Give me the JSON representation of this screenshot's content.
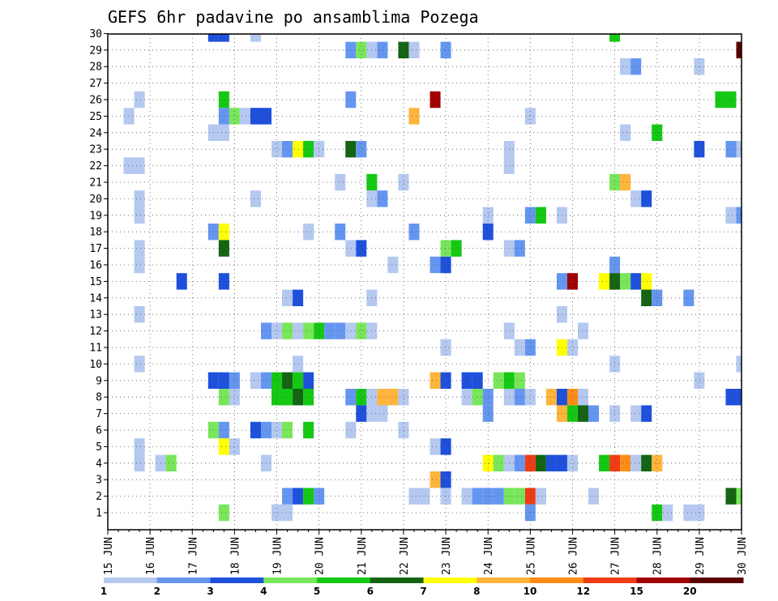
{
  "chart_data": {
    "type": "heatmap",
    "title": "GEFS 6hr padavine po ansamblima Pozega",
    "x_ticks": [
      "15 JUN",
      "16 JUN",
      "17 JUN",
      "18 JUN",
      "19 JUN",
      "20 JUN",
      "21 JUN",
      "22 JUN",
      "23 JUN",
      "24 JUN",
      "25 JUN",
      "26 JUN",
      "27 JUN",
      "28 JUN",
      "29 JUN",
      "30 JUN"
    ],
    "y_ticks": [
      "1",
      "2",
      "3",
      "4",
      "5",
      "6",
      "7",
      "8",
      "9",
      "10",
      "11",
      "12",
      "13",
      "14",
      "15",
      "16",
      "17",
      "18",
      "19",
      "20",
      "21",
      "22",
      "23",
      "24",
      "25",
      "26",
      "27",
      "28",
      "29",
      "30"
    ],
    "xlim_days": [
      15,
      30
    ],
    "ylim_members": [
      1,
      30
    ],
    "time_step_hours": 6,
    "grid": true,
    "legend_position": "bottom",
    "legend": {
      "labels": [
        "1",
        "2",
        "3",
        "4",
        "5",
        "6",
        "7",
        "8",
        "10",
        "12",
        "15",
        "20"
      ],
      "colors": [
        "#b4c8f0",
        "#6496f0",
        "#1e50dc",
        "#78e65a",
        "#14c814",
        "#146414",
        "#ffff00",
        "#ffb43c",
        "#ff8c14",
        "#f03c14",
        "#a00000",
        "#5a0000"
      ]
    },
    "cells": [
      [
        30,
        17.5,
        2
      ],
      [
        30,
        17.75,
        2
      ],
      [
        30,
        18.5,
        0
      ],
      [
        30,
        27.0,
        4
      ],
      [
        29,
        20.75,
        1
      ],
      [
        29,
        21.0,
        3
      ],
      [
        29,
        21.25,
        0
      ],
      [
        29,
        21.5,
        1
      ],
      [
        29,
        22.0,
        5
      ],
      [
        29,
        22.25,
        0
      ],
      [
        29,
        23.0,
        1
      ],
      [
        29,
        30.0,
        11
      ],
      [
        28,
        27.25,
        0
      ],
      [
        28,
        27.5,
        1
      ],
      [
        28,
        29.0,
        0
      ],
      [
        26,
        15.75,
        0
      ],
      [
        26,
        17.75,
        4
      ],
      [
        26,
        20.75,
        1
      ],
      [
        26,
        22.75,
        10
      ],
      [
        26,
        29.5,
        4
      ],
      [
        26,
        29.75,
        4
      ],
      [
        25,
        15.5,
        0
      ],
      [
        25,
        17.75,
        1
      ],
      [
        25,
        18.0,
        3
      ],
      [
        25,
        18.25,
        0
      ],
      [
        25,
        18.5,
        2
      ],
      [
        25,
        18.75,
        2
      ],
      [
        25,
        22.25,
        7
      ],
      [
        25,
        25.0,
        0
      ],
      [
        24,
        17.5,
        0
      ],
      [
        24,
        17.75,
        0
      ],
      [
        24,
        27.25,
        0
      ],
      [
        24,
        28.0,
        4
      ],
      [
        23,
        19.0,
        0
      ],
      [
        23,
        19.25,
        1
      ],
      [
        23,
        19.5,
        6
      ],
      [
        23,
        19.75,
        4
      ],
      [
        23,
        20.0,
        0
      ],
      [
        23,
        20.75,
        5
      ],
      [
        23,
        21.0,
        1
      ],
      [
        23,
        24.5,
        0
      ],
      [
        23,
        29.0,
        2
      ],
      [
        23,
        29.75,
        1
      ],
      [
        23,
        30.0,
        0
      ],
      [
        22,
        15.5,
        0
      ],
      [
        22,
        15.75,
        0
      ],
      [
        22,
        24.5,
        0
      ],
      [
        21,
        20.5,
        0
      ],
      [
        21,
        21.25,
        4
      ],
      [
        21,
        22.0,
        0
      ],
      [
        21,
        27.0,
        3
      ],
      [
        21,
        27.25,
        7
      ],
      [
        20,
        15.75,
        0
      ],
      [
        20,
        18.5,
        0
      ],
      [
        20,
        21.25,
        0
      ],
      [
        20,
        21.5,
        1
      ],
      [
        20,
        27.5,
        0
      ],
      [
        20,
        27.75,
        2
      ],
      [
        19,
        15.75,
        0
      ],
      [
        19,
        24.0,
        0
      ],
      [
        19,
        25.0,
        1
      ],
      [
        19,
        25.25,
        4
      ],
      [
        19,
        25.75,
        0
      ],
      [
        19,
        29.75,
        0
      ],
      [
        19,
        30.0,
        1
      ],
      [
        18,
        17.5,
        1
      ],
      [
        18,
        17.75,
        6
      ],
      [
        18,
        19.75,
        0
      ],
      [
        18,
        20.5,
        1
      ],
      [
        18,
        22.25,
        1
      ],
      [
        18,
        24.0,
        2
      ],
      [
        17,
        15.75,
        0
      ],
      [
        17,
        17.75,
        5
      ],
      [
        17,
        20.75,
        0
      ],
      [
        17,
        21.0,
        2
      ],
      [
        17,
        23.0,
        3
      ],
      [
        17,
        23.25,
        4
      ],
      [
        17,
        24.5,
        0
      ],
      [
        17,
        24.75,
        1
      ],
      [
        16,
        15.75,
        0
      ],
      [
        16,
        21.75,
        0
      ],
      [
        16,
        22.75,
        1
      ],
      [
        16,
        23.0,
        2
      ],
      [
        16,
        27.0,
        1
      ],
      [
        15,
        16.75,
        2
      ],
      [
        15,
        17.75,
        2
      ],
      [
        15,
        25.75,
        1
      ],
      [
        15,
        26.0,
        10
      ],
      [
        15,
        26.75,
        6
      ],
      [
        15,
        27.0,
        5
      ],
      [
        15,
        27.25,
        3
      ],
      [
        15,
        27.5,
        2
      ],
      [
        15,
        27.75,
        6
      ],
      [
        14,
        19.25,
        0
      ],
      [
        14,
        19.5,
        2
      ],
      [
        14,
        21.25,
        0
      ],
      [
        14,
        27.75,
        5
      ],
      [
        14,
        28.0,
        1
      ],
      [
        14,
        28.75,
        1
      ],
      [
        13,
        15.75,
        0
      ],
      [
        13,
        25.75,
        0
      ],
      [
        12,
        18.75,
        1
      ],
      [
        12,
        19.0,
        0
      ],
      [
        12,
        19.25,
        3
      ],
      [
        12,
        19.5,
        0
      ],
      [
        12,
        19.75,
        3
      ],
      [
        12,
        20.0,
        4
      ],
      [
        12,
        20.25,
        1
      ],
      [
        12,
        20.5,
        1
      ],
      [
        12,
        20.75,
        0
      ],
      [
        12,
        21.0,
        3
      ],
      [
        12,
        21.25,
        0
      ],
      [
        12,
        26.25,
        0
      ],
      [
        12,
        24.5,
        0
      ],
      [
        11,
        23.0,
        0
      ],
      [
        11,
        24.75,
        0
      ],
      [
        11,
        25.0,
        1
      ],
      [
        11,
        25.75,
        6
      ],
      [
        11,
        26.0,
        0
      ],
      [
        10,
        15.75,
        0
      ],
      [
        10,
        19.5,
        0
      ],
      [
        10,
        27.0,
        0
      ],
      [
        10,
        30.0,
        0
      ],
      [
        9,
        17.5,
        2
      ],
      [
        9,
        17.75,
        2
      ],
      [
        9,
        18.0,
        1
      ],
      [
        9,
        18.5,
        0
      ],
      [
        9,
        18.75,
        1
      ],
      [
        9,
        19.0,
        4
      ],
      [
        9,
        19.25,
        5
      ],
      [
        9,
        19.5,
        4
      ],
      [
        9,
        19.75,
        2
      ],
      [
        9,
        22.75,
        7
      ],
      [
        9,
        23.0,
        2
      ],
      [
        9,
        23.5,
        2
      ],
      [
        9,
        23.75,
        2
      ],
      [
        9,
        24.25,
        3
      ],
      [
        9,
        24.5,
        4
      ],
      [
        9,
        24.75,
        3
      ],
      [
        9,
        29.0,
        0
      ],
      [
        8,
        17.75,
        3
      ],
      [
        8,
        18.0,
        0
      ],
      [
        8,
        19.0,
        4
      ],
      [
        8,
        19.25,
        4
      ],
      [
        8,
        19.5,
        5
      ],
      [
        8,
        19.75,
        4
      ],
      [
        8,
        20.75,
        1
      ],
      [
        8,
        21.0,
        4
      ],
      [
        8,
        21.25,
        0
      ],
      [
        8,
        21.5,
        7
      ],
      [
        8,
        21.75,
        7
      ],
      [
        8,
        22.0,
        0
      ],
      [
        8,
        23.5,
        0
      ],
      [
        8,
        23.75,
        3
      ],
      [
        8,
        24.0,
        1
      ],
      [
        8,
        24.5,
        0
      ],
      [
        8,
        24.75,
        1
      ],
      [
        8,
        25.0,
        0
      ],
      [
        8,
        25.5,
        7
      ],
      [
        8,
        25.75,
        2
      ],
      [
        8,
        26.0,
        8
      ],
      [
        8,
        26.25,
        0
      ],
      [
        8,
        29.75,
        2
      ],
      [
        8,
        30.0,
        2
      ],
      [
        7,
        21.0,
        2
      ],
      [
        7,
        21.25,
        0
      ],
      [
        7,
        21.5,
        0
      ],
      [
        7,
        24.0,
        1
      ],
      [
        7,
        25.75,
        7
      ],
      [
        7,
        26.0,
        4
      ],
      [
        7,
        26.25,
        5
      ],
      [
        7,
        26.5,
        1
      ],
      [
        7,
        27.0,
        0
      ],
      [
        7,
        27.5,
        0
      ],
      [
        7,
        27.75,
        2
      ],
      [
        6,
        17.5,
        3
      ],
      [
        6,
        17.75,
        1
      ],
      [
        6,
        18.5,
        2
      ],
      [
        6,
        18.75,
        1
      ],
      [
        6,
        19.0,
        0
      ],
      [
        6,
        19.25,
        3
      ],
      [
        6,
        19.75,
        4
      ],
      [
        6,
        20.75,
        0
      ],
      [
        6,
        22.0,
        0
      ],
      [
        5,
        15.75,
        0
      ],
      [
        5,
        17.75,
        6
      ],
      [
        5,
        18.0,
        0
      ],
      [
        5,
        23.0,
        2
      ],
      [
        5,
        22.75,
        0
      ],
      [
        4,
        15.75,
        0
      ],
      [
        4,
        16.25,
        0
      ],
      [
        4,
        16.5,
        3
      ],
      [
        4,
        18.75,
        0
      ],
      [
        4,
        24.0,
        6
      ],
      [
        4,
        24.25,
        3
      ],
      [
        4,
        24.5,
        0
      ],
      [
        4,
        24.75,
        1
      ],
      [
        4,
        25.0,
        9
      ],
      [
        4,
        25.25,
        5
      ],
      [
        4,
        25.5,
        2
      ],
      [
        4,
        25.75,
        2
      ],
      [
        4,
        26.0,
        0
      ],
      [
        4,
        26.75,
        4
      ],
      [
        4,
        27.0,
        9
      ],
      [
        4,
        27.25,
        8
      ],
      [
        4,
        27.5,
        0
      ],
      [
        4,
        27.75,
        5
      ],
      [
        4,
        28.0,
        7
      ],
      [
        3,
        22.75,
        7
      ],
      [
        3,
        23.0,
        2
      ],
      [
        2,
        19.25,
        1
      ],
      [
        2,
        19.5,
        2
      ],
      [
        2,
        19.75,
        4
      ],
      [
        2,
        20.0,
        1
      ],
      [
        2,
        22.25,
        0
      ],
      [
        2,
        22.5,
        0
      ],
      [
        2,
        23.0,
        0
      ],
      [
        2,
        23.5,
        0
      ],
      [
        2,
        23.75,
        1
      ],
      [
        2,
        24.0,
        1
      ],
      [
        2,
        24.25,
        1
      ],
      [
        2,
        24.5,
        3
      ],
      [
        2,
        24.75,
        3
      ],
      [
        2,
        25.0,
        9
      ],
      [
        2,
        25.25,
        0
      ],
      [
        2,
        26.5,
        0
      ],
      [
        2,
        29.75,
        5
      ],
      [
        2,
        30.0,
        3
      ],
      [
        1,
        17.75,
        3
      ],
      [
        1,
        19.0,
        0
      ],
      [
        1,
        19.25,
        0
      ],
      [
        1,
        25.0,
        1
      ],
      [
        1,
        28.0,
        4
      ],
      [
        1,
        28.25,
        0
      ],
      [
        1,
        28.75,
        0
      ],
      [
        1,
        29.0,
        0
      ]
    ]
  }
}
